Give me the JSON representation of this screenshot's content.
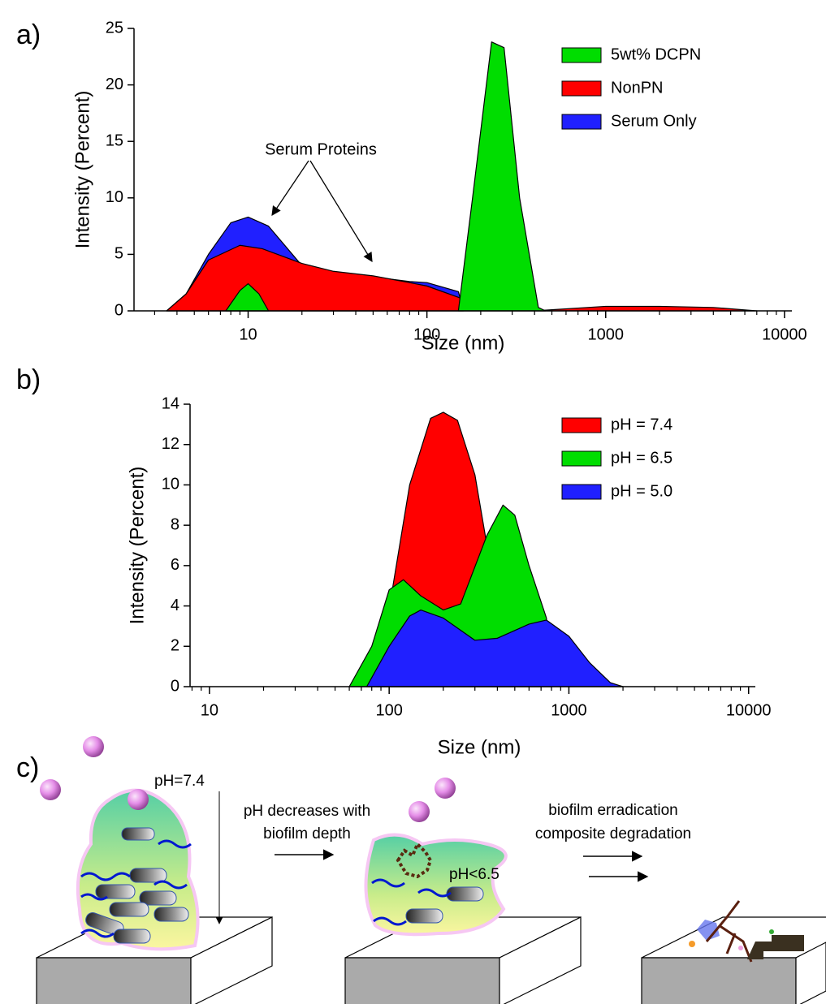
{
  "chart_data": [
    {
      "type": "area",
      "panel": "a)",
      "xlabel": "Size (nm)",
      "ylabel": "Intensity (Percent)",
      "xscale": "log",
      "xlim": [
        2.3,
        11000
      ],
      "ylim": [
        0,
        25
      ],
      "xticks": [
        10,
        100,
        1000,
        10000
      ],
      "yticks": [
        0,
        5,
        10,
        15,
        20,
        25
      ],
      "legend": "upper right",
      "layer_order": "reverse",
      "annotation": "Serum Proteins",
      "series": [
        {
          "name": "5wt% DCPN",
          "color": "#00dd00",
          "x": [
            7.5,
            9,
            10,
            11.5,
            13,
            50,
            150,
            180,
            230,
            270,
            330,
            420,
            460
          ],
          "values": [
            0,
            1.8,
            2.4,
            1.5,
            0,
            null,
            0,
            10,
            23.8,
            23.3,
            10,
            0.3,
            0
          ]
        },
        {
          "name": "NonPN",
          "color": "#ff0000",
          "x": [
            3.5,
            4.5,
            6,
            9,
            12,
            20,
            30,
            50,
            80,
            100,
            150,
            200,
            400,
            500,
            1000,
            2000,
            4000,
            7000
          ],
          "values": [
            0,
            1.5,
            4.5,
            5.8,
            5.5,
            4.2,
            3.5,
            3.1,
            2.5,
            2.2,
            1.2,
            0.3,
            0,
            0.1,
            0.4,
            0.4,
            0.3,
            0
          ]
        },
        {
          "name": "Serum Only",
          "color": "#2020ff",
          "x": [
            3.5,
            4.5,
            6,
            8,
            10,
            13,
            20,
            30,
            50,
            80,
            100,
            150,
            160
          ],
          "values": [
            0,
            1.5,
            5,
            7.8,
            8.3,
            7.5,
            4,
            3.2,
            3,
            2.6,
            2.5,
            1.7,
            0
          ]
        }
      ]
    },
    {
      "type": "area",
      "panel": "b)",
      "xlabel": "Size (nm)",
      "ylabel": "Intensity (Percent)",
      "xscale": "log",
      "xlim": [
        7.8,
        10900
      ],
      "ylim": [
        0,
        14
      ],
      "xticks": [
        10,
        100,
        1000,
        10000
      ],
      "yticks": [
        0,
        2,
        4,
        6,
        8,
        10,
        12,
        14
      ],
      "legend": "upper right",
      "series": [
        {
          "name": "pH = 7.4",
          "color": "#ff0000",
          "x": [
            85,
            105,
            130,
            170,
            200,
            240,
            300,
            350,
            400,
            500
          ],
          "values": [
            0,
            5,
            10,
            13.3,
            13.6,
            13.2,
            10.5,
            7,
            4,
            0
          ]
        },
        {
          "name": "pH = 6.5",
          "color": "#00dd00",
          "x": [
            60,
            80,
            100,
            120,
            150,
            200,
            250,
            350,
            430,
            500,
            600,
            750,
            800
          ],
          "values": [
            0,
            2,
            4.8,
            5.3,
            4.5,
            3.8,
            4.1,
            7.5,
            9,
            8.5,
            6,
            3.4,
            0
          ]
        },
        {
          "name": "pH = 5.0",
          "color": "#2020ff",
          "x": [
            75,
            100,
            130,
            150,
            200,
            300,
            400,
            600,
            750,
            1000,
            1300,
            1700,
            2000
          ],
          "values": [
            0,
            2,
            3.5,
            3.8,
            3.4,
            2.3,
            2.4,
            3.1,
            3.3,
            2.5,
            1.2,
            0.2,
            0
          ]
        }
      ]
    }
  ],
  "diagram": {
    "panel": "c)",
    "ph_top": "pH=7.4",
    "gradient_note": [
      "pH decreases with",
      "biofilm depth"
    ],
    "ph_low": "pH<6.5",
    "outcome": [
      "biofilm erradication",
      "composite degradation"
    ]
  }
}
